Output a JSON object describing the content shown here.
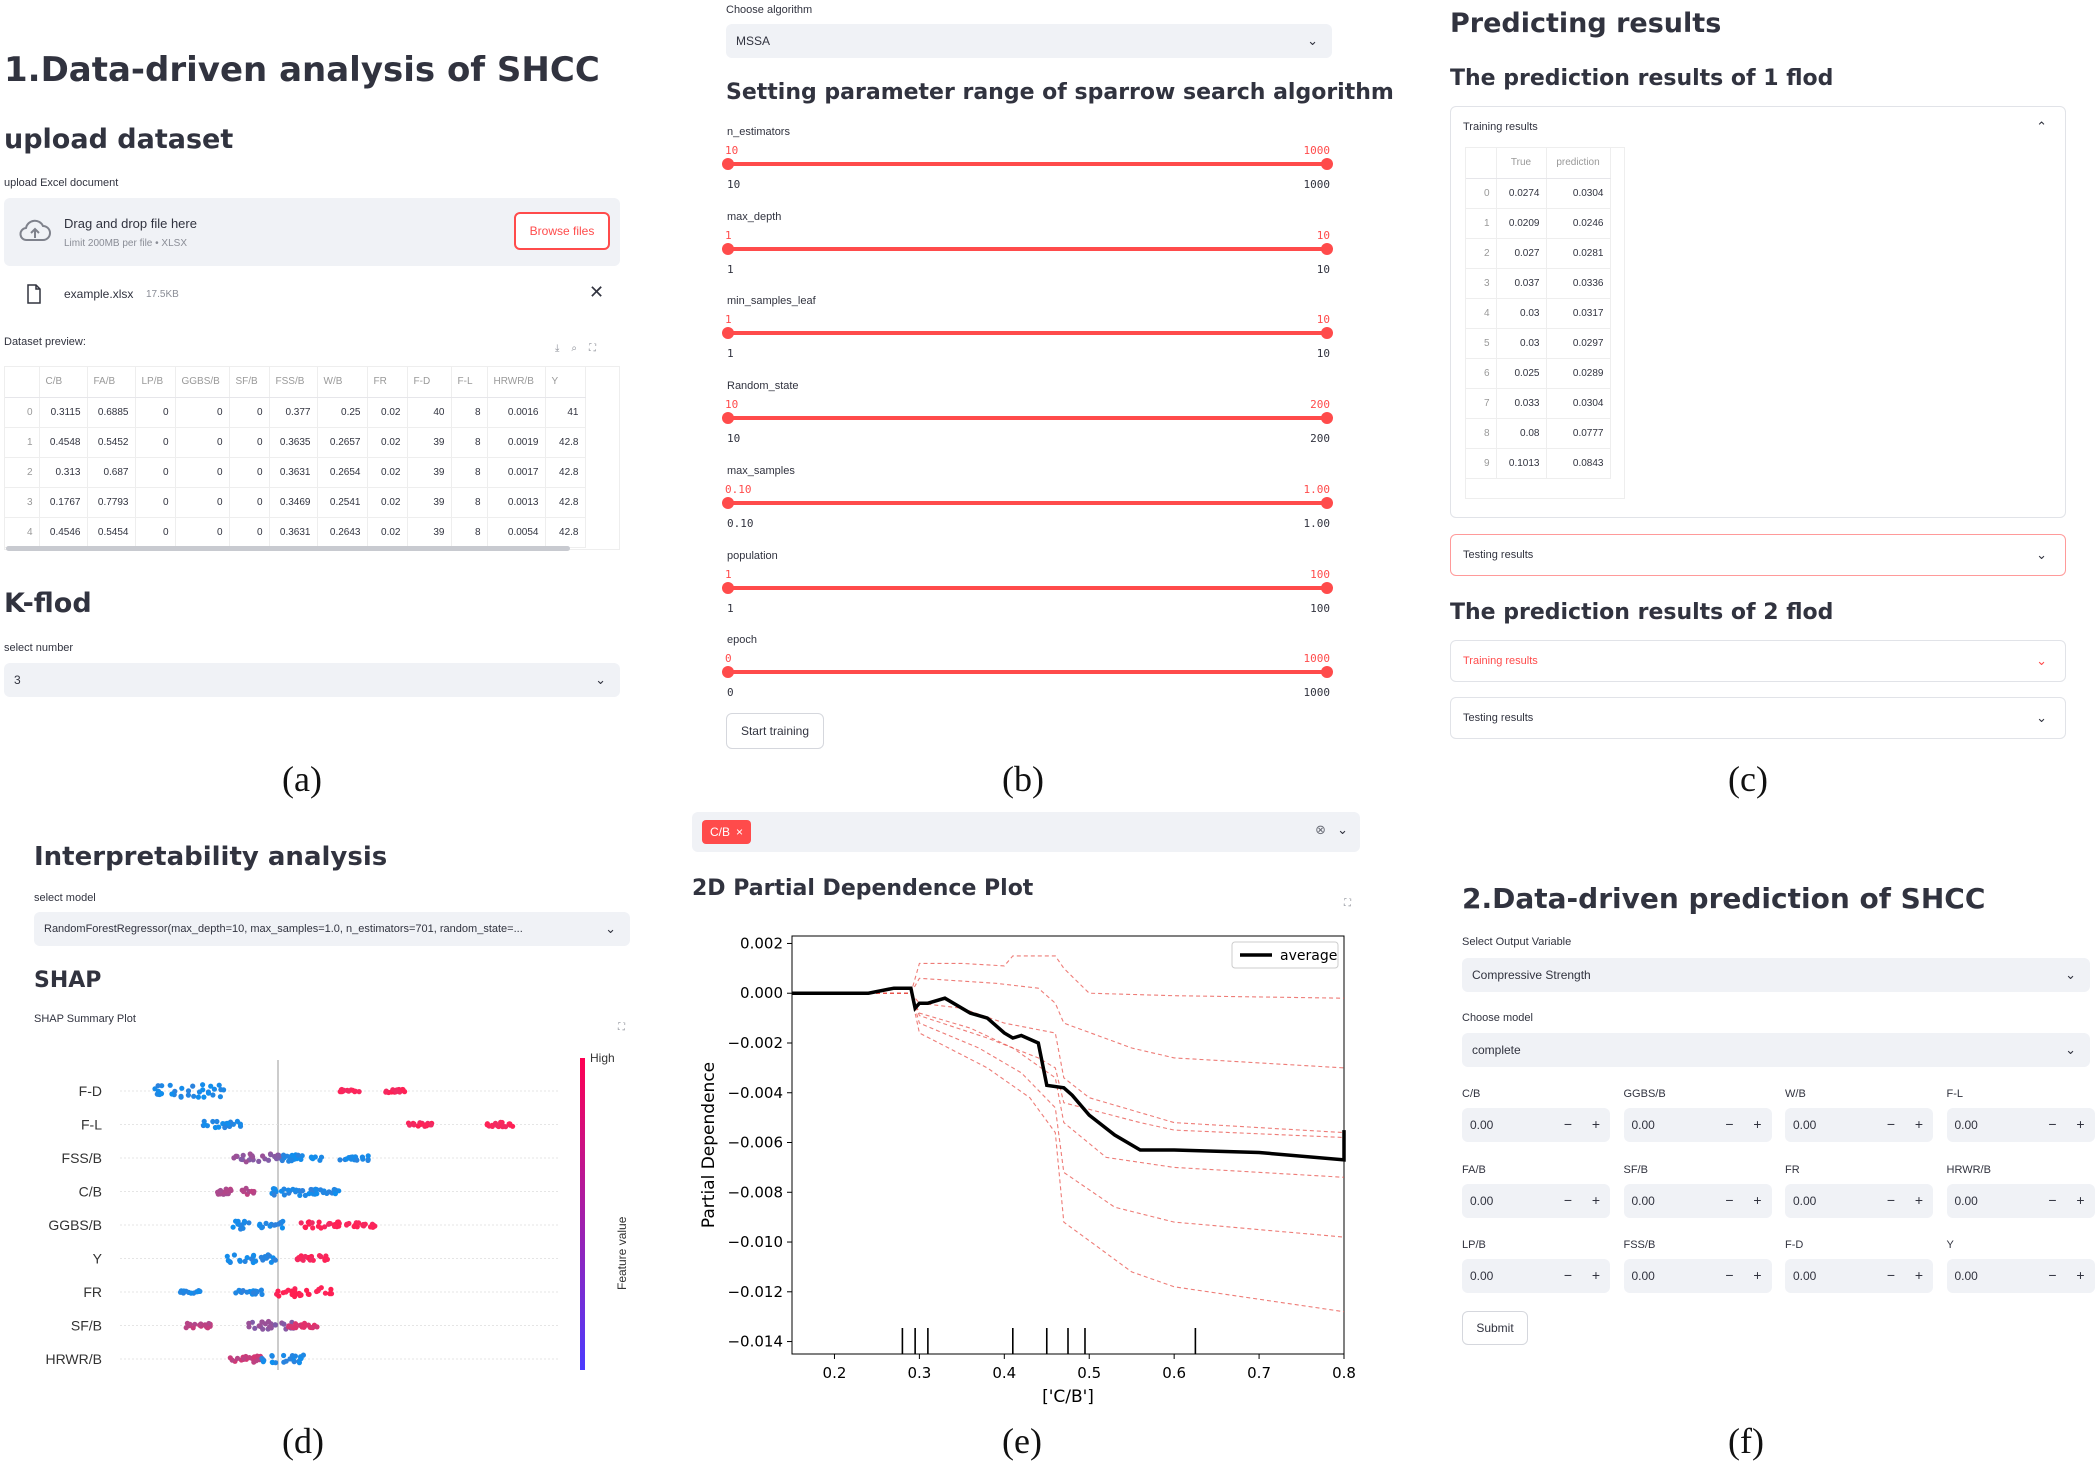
{
  "a": {
    "title": "1.Data-driven analysis of SHCC",
    "upload_heading": "upload dataset",
    "upload_label": "upload Excel document",
    "drop_text": "Drag and drop file here",
    "limit_text": "Limit 200MB per file • XLSX",
    "browse_label": "Browse files",
    "file_name": "example.xlsx",
    "file_size": "17.5KB",
    "preview_label": "Dataset preview:",
    "columns": [
      "",
      "C/B",
      "FA/B",
      "LP/B",
      "GGBS/B",
      "SF/B",
      "FSS/B",
      "W/B",
      "FR",
      "F-D",
      "F-L",
      "HRWR/B",
      "Y"
    ],
    "rows": [
      [
        "0",
        "0.3115",
        "0.6885",
        "0",
        "0",
        "0",
        "0.377",
        "0.25",
        "0.02",
        "40",
        "8",
        "0.0016",
        "41"
      ],
      [
        "1",
        "0.4548",
        "0.5452",
        "0",
        "0",
        "0",
        "0.3635",
        "0.2657",
        "0.02",
        "39",
        "8",
        "0.0019",
        "42.8"
      ],
      [
        "2",
        "0.313",
        "0.687",
        "0",
        "0",
        "0",
        "0.3631",
        "0.2654",
        "0.02",
        "39",
        "8",
        "0.0017",
        "42.8"
      ],
      [
        "3",
        "0.1767",
        "0.7793",
        "0",
        "0",
        "0",
        "0.3469",
        "0.2541",
        "0.02",
        "39",
        "8",
        "0.0013",
        "42.8"
      ],
      [
        "4",
        "0.4546",
        "0.5454",
        "0",
        "0",
        "0",
        "0.3631",
        "0.2643",
        "0.02",
        "39",
        "8",
        "0.0054",
        "42.8"
      ]
    ],
    "kflod_heading": "K-flod",
    "select_label": "select number",
    "select_value": "3"
  },
  "b": {
    "algo_label": "Choose algorithm",
    "algo_value": "MSSA",
    "heading": "Setting parameter range of sparrow search algorithm",
    "sliders": [
      {
        "name": "n_estimators",
        "min": "10",
        "max": "1000",
        "tmin": "10",
        "tmax": "1000"
      },
      {
        "name": "max_depth",
        "min": "1",
        "max": "10",
        "tmin": "1",
        "tmax": "10"
      },
      {
        "name": "min_samples_leaf",
        "min": "1",
        "max": "10",
        "tmin": "1",
        "tmax": "10"
      },
      {
        "name": "Random_state",
        "min": "10",
        "max": "200",
        "tmin": "10",
        "tmax": "200"
      },
      {
        "name": "max_samples",
        "min": "0.10",
        "max": "1.00",
        "tmin": "0.10",
        "tmax": "1.00"
      },
      {
        "name": "population",
        "min": "1",
        "max": "100",
        "tmin": "1",
        "tmax": "100"
      },
      {
        "name": "epoch",
        "min": "0",
        "max": "1000",
        "tmin": "0",
        "tmax": "1000"
      }
    ],
    "start_label": "Start training"
  },
  "c": {
    "heading": "Predicting results",
    "fold1": "The prediction results of 1 flod",
    "training": "Training results",
    "testing": "Testing results",
    "cols": [
      "",
      "True",
      "prediction"
    ],
    "rows": [
      [
        "0",
        "0.0274",
        "0.0304"
      ],
      [
        "1",
        "0.0209",
        "0.0246"
      ],
      [
        "2",
        "0.027",
        "0.0281"
      ],
      [
        "3",
        "0.037",
        "0.0336"
      ],
      [
        "4",
        "0.03",
        "0.0317"
      ],
      [
        "5",
        "0.03",
        "0.0297"
      ],
      [
        "6",
        "0.025",
        "0.0289"
      ],
      [
        "7",
        "0.033",
        "0.0304"
      ],
      [
        "8",
        "0.08",
        "0.0777"
      ],
      [
        "9",
        "0.1013",
        "0.0843"
      ]
    ],
    "fold2": "The prediction results of 2 flod"
  },
  "d": {
    "heading": "Interpretability analysis",
    "model_label": "select model",
    "model_value": "RandomForestRegressor(max_depth=10, max_samples=1.0, n_estimators=701, random_state=...",
    "shap_heading": "SHAP",
    "summary_label": "SHAP Summary Plot",
    "features": [
      "F-D",
      "F-L",
      "FSS/B",
      "C/B",
      "GGBS/B",
      "Y",
      "FR",
      "SF/B",
      "HRWR/B"
    ],
    "high_label": "High",
    "feature_value_label": "Feature value"
  },
  "e": {
    "tag": "C/B",
    "heading": "2D Partial Dependence Plot",
    "chart_data": {
      "type": "line",
      "ylabel": "Partial Dependence",
      "xlabel": "['C/B']",
      "xlim": [
        0.15,
        0.8
      ],
      "ylim": [
        -0.0145,
        0.0023
      ],
      "xticks": [
        0.2,
        0.3,
        0.4,
        0.5,
        0.6,
        0.7,
        0.8
      ],
      "xtick_labels": [
        "0.2",
        "0.3",
        "0.4",
        "0.5",
        "0.6",
        "0.7",
        "0.8"
      ],
      "yticks": [
        0.002,
        0.0,
        -0.002,
        -0.004,
        -0.006,
        -0.008,
        -0.01,
        -0.012,
        -0.014
      ],
      "ytick_labels": [
        "0.002",
        "0.000",
        "−0.002",
        "−0.004",
        "−0.006",
        "−0.008",
        "−0.010",
        "−0.012",
        "−0.014"
      ],
      "legend": "average",
      "legend_position": "top-right",
      "series": [
        {
          "name": "average",
          "color": "#000000",
          "x": [
            0.15,
            0.24,
            0.27,
            0.29,
            0.295,
            0.3,
            0.31,
            0.33,
            0.36,
            0.38,
            0.4,
            0.41,
            0.42,
            0.44,
            0.45,
            0.47,
            0.48,
            0.5,
            0.53,
            0.56,
            0.6,
            0.7,
            0.8,
            0.8
          ],
          "y": [
            0.0,
            0.0,
            0.0002,
            0.0002,
            -0.0006,
            -0.0004,
            -0.0004,
            -0.0002,
            -0.0008,
            -0.001,
            -0.0016,
            -0.0018,
            -0.0017,
            -0.002,
            -0.0037,
            -0.0038,
            -0.0041,
            -0.0049,
            -0.0057,
            -0.0063,
            -0.0063,
            -0.0064,
            -0.0067,
            -0.0055
          ]
        },
        {
          "name": "",
          "color": "#e8504a",
          "x": [
            0.15,
            0.29,
            0.3,
            0.35,
            0.4,
            0.41,
            0.46,
            0.47,
            0.5,
            0.6,
            0.8
          ],
          "y": [
            0.0,
            0.0,
            0.0012,
            0.0012,
            0.0011,
            0.0015,
            0.0015,
            0.001,
            0.0,
            -0.0001,
            -0.0002
          ]
        },
        {
          "name": "",
          "color": "#e8504a",
          "x": [
            0.15,
            0.29,
            0.3,
            0.35,
            0.4,
            0.46,
            0.47,
            0.5,
            0.6,
            0.8
          ],
          "y": [
            0.0,
            0.0,
            -0.0004,
            -0.0006,
            -0.0012,
            -0.0016,
            -0.0034,
            -0.0042,
            -0.0052,
            -0.0056
          ]
        },
        {
          "name": "",
          "color": "#e8504a",
          "x": [
            0.15,
            0.29,
            0.3,
            0.36,
            0.41,
            0.46,
            0.47,
            0.52,
            0.6,
            0.8
          ],
          "y": [
            0.0,
            0.0,
            -0.0008,
            -0.0014,
            -0.0022,
            -0.0034,
            -0.0052,
            -0.0066,
            -0.007,
            -0.0074
          ]
        },
        {
          "name": "",
          "color": "#e8504a",
          "x": [
            0.15,
            0.29,
            0.3,
            0.37,
            0.42,
            0.46,
            0.47,
            0.53,
            0.6,
            0.8
          ],
          "y": [
            0.0,
            0.0,
            -0.0012,
            -0.0022,
            -0.0032,
            -0.0046,
            -0.0072,
            -0.0086,
            -0.0092,
            -0.0098
          ]
        },
        {
          "name": "",
          "color": "#e8504a",
          "x": [
            0.15,
            0.29,
            0.3,
            0.38,
            0.43,
            0.46,
            0.47,
            0.55,
            0.6,
            0.8
          ],
          "y": [
            0.0,
            0.0,
            -0.0016,
            -0.003,
            -0.0042,
            -0.0056,
            -0.0092,
            -0.0112,
            -0.0118,
            -0.0128
          ]
        },
        {
          "name": "",
          "color": "#e8504a",
          "x": [
            0.15,
            0.29,
            0.3,
            0.38,
            0.44,
            0.46,
            0.47,
            0.56,
            0.6,
            0.8
          ],
          "y": [
            0.0,
            0.0,
            -0.0009,
            -0.0018,
            -0.0026,
            -0.003,
            -0.0044,
            -0.0052,
            -0.0055,
            -0.0058
          ]
        },
        {
          "name": "",
          "color": "#e8504a",
          "x": [
            0.15,
            0.29,
            0.3,
            0.39,
            0.44,
            0.46,
            0.47,
            0.55,
            0.6,
            0.8
          ],
          "y": [
            0.0,
            0.0,
            0.0006,
            0.0004,
            0.0002,
            -0.0004,
            -0.0012,
            -0.0022,
            -0.0026,
            -0.003
          ]
        }
      ],
      "rug_x": [
        0.28,
        0.295,
        0.31,
        0.41,
        0.45,
        0.475,
        0.495,
        0.625
      ]
    }
  },
  "f": {
    "heading": "2.Data-driven prediction of SHCC",
    "output_label": "Select Output Variable",
    "output_value": "Compressive Strength",
    "model_label": "Choose model",
    "model_value": "complete",
    "inputs": [
      {
        "label": "C/B",
        "value": "0.00"
      },
      {
        "label": "GGBS/B",
        "value": "0.00"
      },
      {
        "label": "W/B",
        "value": "0.00"
      },
      {
        "label": "F-L",
        "value": "0.00"
      },
      {
        "label": "FA/B",
        "value": "0.00"
      },
      {
        "label": "SF/B",
        "value": "0.00"
      },
      {
        "label": "FR",
        "value": "0.00"
      },
      {
        "label": "HRWR/B",
        "value": "0.00"
      },
      {
        "label": "LP/B",
        "value": "0.00"
      },
      {
        "label": "FSS/B",
        "value": "0.00"
      },
      {
        "label": "F-D",
        "value": "0.00"
      },
      {
        "label": "Y",
        "value": "0.00"
      }
    ],
    "submit_label": "Submit"
  },
  "captions": [
    "(a)",
    "(b)",
    "(c)",
    "(d)",
    "(e)",
    "(f)"
  ],
  "colors": {
    "accent": "#ff4b4b",
    "widget_bg": "#f0f2f6",
    "pd_ice": "#e8504a"
  }
}
